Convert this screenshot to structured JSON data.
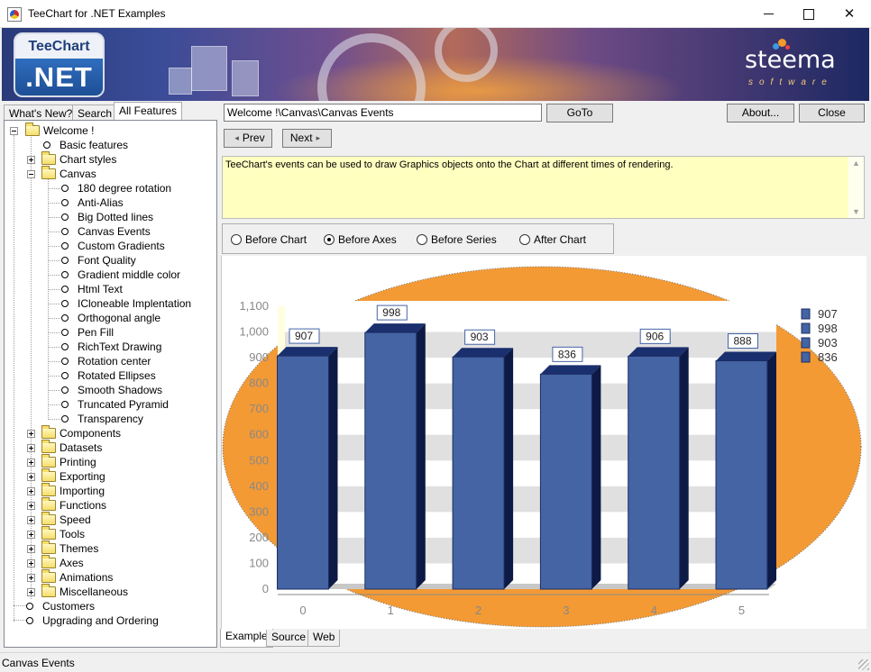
{
  "window": {
    "title": "TeeChart for .NET Examples"
  },
  "banner": {
    "logo_top": "TeeChart",
    "logo_bottom": ".NET",
    "brand": "steema",
    "brand_sub": "software"
  },
  "left_tabs": [
    {
      "label": "What's New?"
    },
    {
      "label": "Search"
    },
    {
      "label": "All Features"
    }
  ],
  "tree": {
    "root": "Welcome !",
    "basic": "Basic features",
    "chart_styles": "Chart styles",
    "canvas": "Canvas",
    "canvas_items": [
      "180 degree rotation",
      "Anti-Alias",
      "Big Dotted lines",
      "Canvas Events",
      "Custom Gradients",
      "Font Quality",
      "Gradient middle color",
      "Html Text",
      "ICloneable Implentation",
      "Orthogonal angle",
      "Pen Fill",
      "RichText Drawing",
      "Rotation center",
      "Rotated Ellipses",
      "Smooth Shadows",
      "Truncated Pyramid",
      "Transparency"
    ],
    "folders": [
      "Components",
      "Datasets",
      "Printing",
      "Exporting",
      "Importing",
      "Functions",
      "Speed",
      "Tools",
      "Themes",
      "Axes",
      "Animations",
      "Miscellaneous"
    ],
    "customers": "Customers",
    "upgrading": "Upgrading and Ordering"
  },
  "toolbar": {
    "path": "Welcome !\\Canvas\\Canvas Events",
    "goto": "GoTo",
    "about": "About...",
    "close": "Close",
    "prev": "Prev",
    "next": "Next"
  },
  "description": "TeeChart's events can be used to draw Graphics objects onto the Chart at different times of rendering.",
  "radio_options": [
    {
      "label": "Before Chart",
      "checked": false
    },
    {
      "label": "Before Axes",
      "checked": true
    },
    {
      "label": "Before Series",
      "checked": false
    },
    {
      "label": "After Chart",
      "checked": false
    }
  ],
  "chart_data": {
    "type": "bar",
    "categories": [
      "0",
      "1",
      "2",
      "3",
      "4",
      "5"
    ],
    "values": [
      907,
      998,
      903,
      836,
      906,
      888
    ],
    "data_labels": [
      "907",
      "998",
      "903",
      "836",
      "906",
      "888"
    ],
    "ylim": [
      0,
      1100
    ],
    "yticks": [
      "0",
      "100",
      "200",
      "300",
      "400",
      "500",
      "600",
      "700",
      "800",
      "900",
      "1,000",
      "1,100"
    ],
    "legend": [
      "907",
      "998",
      "903",
      "836"
    ],
    "legend_position": "top-right",
    "bar_color": "#4464a4",
    "ellipse_color": "#f39a35",
    "grid": "alternating bands"
  },
  "bottom_tabs": [
    {
      "label": "Example"
    },
    {
      "label": "Source"
    },
    {
      "label": "Web"
    }
  ],
  "status": "Canvas Events"
}
